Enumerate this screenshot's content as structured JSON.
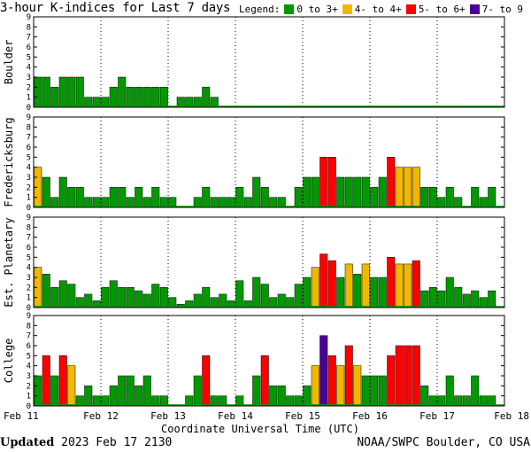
{
  "title": "3-hour K-indices for Last 7 days",
  "legend": {
    "label": "Legend:",
    "items": [
      {
        "label": "0 to 3+",
        "color": "#009900"
      },
      {
        "label": "4- to 4+",
        "color": "#f0b800"
      },
      {
        "label": "5- to 6+",
        "color": "#ff0000"
      },
      {
        "label": "7- to 9",
        "color": "#4b0096"
      }
    ]
  },
  "footer": {
    "updated_label": "Updated",
    "updated_value": "2023 Feb 17 2130",
    "source": "NOAA/SWPC Boulder, CO USA"
  },
  "chart_data": {
    "type": "bar",
    "xlabel": "Coordinate Universal Time (UTC)",
    "x_ticks": [
      "Feb 11",
      "Feb 12",
      "Feb 13",
      "Feb 14",
      "Feb 15",
      "Feb 16",
      "Feb 17",
      "Feb 18"
    ],
    "y_ticks": [
      "0",
      "1",
      "2",
      "3",
      "4",
      "5",
      "6",
      "7",
      "8",
      "9"
    ],
    "ylim": [
      0,
      9
    ],
    "interval": "3 hours",
    "panels": [
      {
        "ylabel": "Boulder",
        "values": [
          3,
          3,
          2,
          3,
          3,
          3,
          1,
          1,
          1,
          2,
          3,
          2,
          2,
          2,
          2,
          2,
          0,
          1,
          1,
          1,
          2,
          1,
          0,
          0,
          0,
          0,
          0,
          0,
          0,
          0,
          0,
          0,
          0,
          0,
          0,
          0,
          0,
          0,
          0,
          0,
          0,
          0,
          0,
          0,
          0,
          0,
          0,
          0,
          0,
          0,
          0,
          0,
          0,
          0,
          0,
          0,
          0
        ]
      },
      {
        "ylabel": "Fredericksburg",
        "values": [
          4,
          3,
          1,
          3,
          2,
          2,
          1,
          1,
          1,
          2,
          2,
          1,
          2,
          1,
          2,
          1,
          1,
          0,
          0,
          1,
          2,
          1,
          1,
          1,
          2,
          1,
          3,
          2,
          1,
          1,
          0,
          2,
          3,
          3,
          5,
          5,
          3,
          3,
          3,
          3,
          2,
          3,
          5,
          4,
          4,
          4,
          2,
          2,
          1,
          2,
          1,
          0,
          2,
          1,
          2,
          0
        ]
      },
      {
        "ylabel": "Est. Planetary",
        "values": [
          4,
          3.33,
          2,
          2.67,
          2.33,
          1,
          1.33,
          0.67,
          2,
          2.67,
          2,
          2,
          1.67,
          1.33,
          2.33,
          2,
          1,
          0.33,
          0.67,
          1.33,
          2,
          1,
          1.33,
          0.67,
          2.67,
          0.67,
          3,
          2.33,
          1,
          1.33,
          1,
          2.33,
          3,
          4,
          5.33,
          4.67,
          3,
          4.33,
          3.33,
          4.33,
          3,
          3,
          5,
          4.33,
          4.33,
          4.67,
          1.67,
          2,
          1.67,
          3,
          2,
          1.33,
          1.67,
          1,
          1.67
        ]
      },
      {
        "ylabel": "College",
        "values": [
          3,
          5,
          3,
          5,
          4,
          1,
          2,
          1,
          1,
          2,
          3,
          3,
          2,
          3,
          1,
          1,
          0,
          0,
          1,
          3,
          5,
          1,
          1,
          0,
          1,
          0,
          3,
          5,
          2,
          2,
          1,
          1,
          2,
          4,
          7,
          5,
          4,
          6,
          4,
          3,
          3,
          3,
          5,
          6,
          6,
          6,
          2,
          1,
          1,
          3,
          1,
          1,
          3,
          1,
          1,
          0
        ]
      }
    ]
  }
}
